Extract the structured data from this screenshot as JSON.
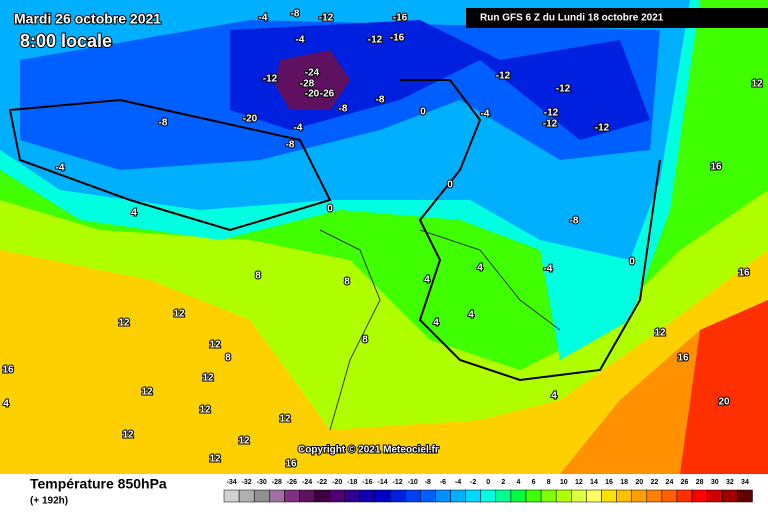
{
  "header": {
    "date": "Mardi 26 octobre 2021",
    "time": "8:00 locale",
    "run": "Run GFS 6 Z du Lundi 18 octobre 2021"
  },
  "footer": {
    "title": "Température 850hPa",
    "lead": "(+ 192h)",
    "copyright": "Copyright © 2021 Meteociel.fr"
  },
  "legend": {
    "ticks": [
      -34,
      -32,
      -30,
      -28,
      -26,
      -24,
      -22,
      -20,
      -18,
      -16,
      -14,
      -12,
      -10,
      -8,
      -6,
      -4,
      -2,
      0,
      2,
      4,
      6,
      8,
      10,
      12,
      14,
      16,
      18,
      20,
      22,
      24,
      26,
      28,
      30,
      32,
      34
    ],
    "colors": [
      "#d0d0d0",
      "#b0b0b0",
      "#909090",
      "#a070a0",
      "#803080",
      "#601060",
      "#400040",
      "#500070",
      "#300090",
      "#1000b0",
      "#0000c8",
      "#0020e0",
      "#0040f0",
      "#0060ff",
      "#0090ff",
      "#00b0ff",
      "#00d8ff",
      "#00ffe0",
      "#00ff90",
      "#00ff40",
      "#40ff00",
      "#80ff00",
      "#b0ff00",
      "#e0ff40",
      "#ffff60",
      "#ffe000",
      "#ffc000",
      "#ffa000",
      "#ff8000",
      "#ff6000",
      "#ff3000",
      "#ff0000",
      "#d00000",
      "#a00000",
      "#600000"
    ]
  },
  "map_labels": [
    -12,
    -16,
    -12,
    -16,
    -4,
    -8,
    -4,
    -24,
    -28,
    -20,
    -26,
    -12,
    -8,
    -20,
    -8,
    -4,
    -8,
    -8,
    -12,
    -12,
    -12,
    -12,
    -12,
    -4,
    0,
    0,
    4,
    -8,
    -4,
    0,
    16,
    12,
    16,
    12,
    16,
    20,
    8,
    12,
    12,
    12,
    8,
    12,
    12,
    12,
    12,
    12,
    12,
    12,
    16,
    8,
    8,
    4,
    4,
    4,
    4,
    4,
    16,
    4,
    -4,
    0
  ]
}
